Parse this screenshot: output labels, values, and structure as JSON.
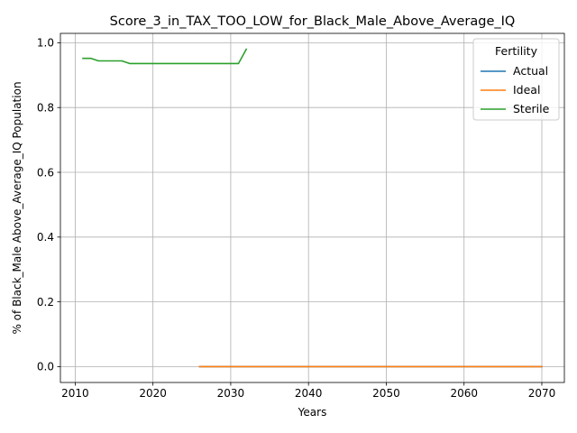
{
  "chart_data": {
    "type": "line",
    "title": "Score_3_in_TAX_TOO_LOW_for_Black_Male_Above_Average_IQ",
    "xlabel": "Years",
    "ylabel": "% of Black_Male Above_Average_IQ Population",
    "xlim": [
      2008.1,
      2072.9
    ],
    "ylim": [
      -0.049,
      1.029
    ],
    "xticks": [
      2010,
      2020,
      2030,
      2040,
      2050,
      2060,
      2070
    ],
    "xtick_labels": [
      "2010",
      "2020",
      "2030",
      "2040",
      "2050",
      "2060",
      "2070"
    ],
    "yticks": [
      0.0,
      0.2,
      0.4,
      0.6,
      0.8,
      1.0
    ],
    "ytick_labels": [
      "0.0",
      "0.2",
      "0.4",
      "0.6",
      "0.8",
      "1.0"
    ],
    "grid": true,
    "legend": {
      "title": "Fertility",
      "placement": "top-right"
    },
    "series": [
      {
        "name": "Actual",
        "color": "#1f77b4",
        "x": [
          2026,
          2030,
          2035,
          2040,
          2045,
          2050,
          2055,
          2060,
          2065,
          2070
        ],
        "y": [
          0,
          0,
          0,
          0,
          0,
          0,
          0,
          0,
          0,
          0
        ]
      },
      {
        "name": "Ideal",
        "color": "#ff7f0e",
        "x": [
          2026,
          2030,
          2035,
          2040,
          2045,
          2050,
          2055,
          2060,
          2065,
          2070
        ],
        "y": [
          0,
          0,
          0,
          0,
          0,
          0,
          0,
          0,
          0,
          0
        ]
      },
      {
        "name": "Sterile",
        "color": "#2ca02c",
        "x": [
          2011,
          2012,
          2013,
          2014,
          2015,
          2016,
          2017,
          2018,
          2019,
          2020,
          2021,
          2022,
          2023,
          2024,
          2025,
          2026,
          2027,
          2028,
          2029,
          2030,
          2031,
          2032
        ],
        "y": [
          0.952,
          0.952,
          0.944,
          0.944,
          0.944,
          0.944,
          0.936,
          0.936,
          0.936,
          0.936,
          0.936,
          0.936,
          0.936,
          0.936,
          0.936,
          0.936,
          0.936,
          0.936,
          0.936,
          0.936,
          0.936,
          0.98
        ]
      }
    ]
  }
}
